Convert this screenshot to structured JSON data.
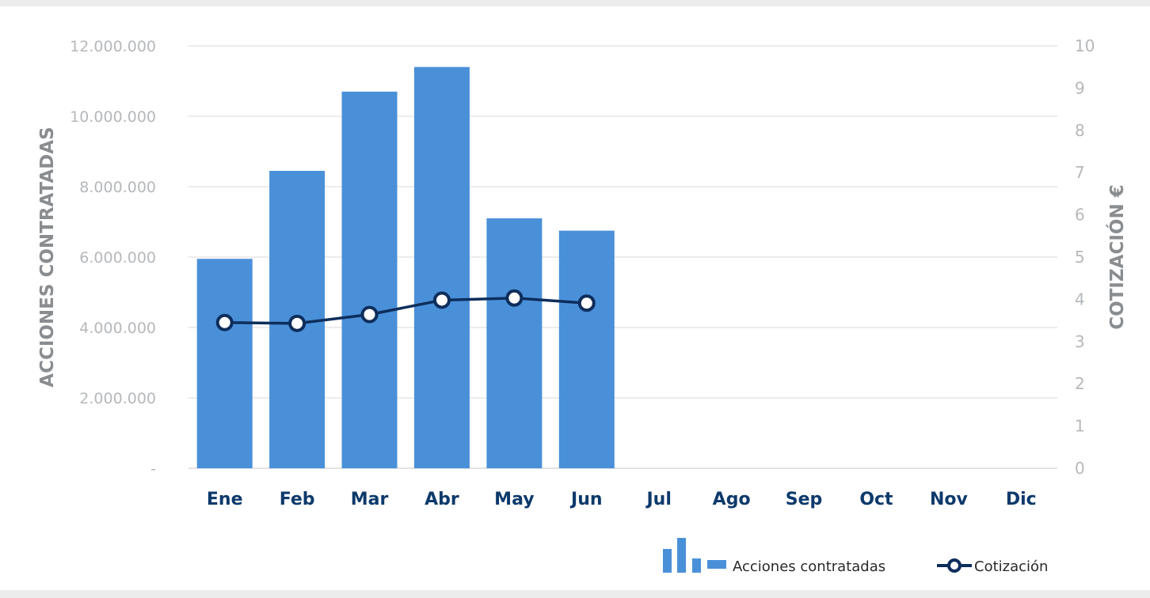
{
  "chart_data": {
    "type": "bar",
    "categories": [
      "Ene",
      "Feb",
      "Mar",
      "Abr",
      "May",
      "Jun",
      "Jul",
      "Ago",
      "Sep",
      "Oct",
      "Nov",
      "Dic"
    ],
    "series": [
      {
        "name": "Acciones contratadas",
        "type": "bar",
        "axis": "left",
        "values": [
          5950000,
          8450000,
          10700000,
          11400000,
          7100000,
          6750000,
          null,
          null,
          null,
          null,
          null,
          null
        ]
      },
      {
        "name": "Cotización",
        "type": "line",
        "axis": "right",
        "values": [
          3.45,
          3.43,
          3.64,
          3.98,
          4.03,
          3.91,
          null,
          null,
          null,
          null,
          null,
          null
        ]
      }
    ],
    "ylabel": "ACCIONES CONTRATADAS",
    "y2label": "COTIZACIÓN €",
    "ylim": [
      0,
      12000000
    ],
    "y2lim": [
      0,
      10
    ],
    "yticks": [
      0,
      2000000,
      4000000,
      6000000,
      8000000,
      10000000,
      12000000
    ],
    "ytick_labels": [
      "-",
      "2.000.000",
      "4.000.000",
      "6.000.000",
      "8.000.000",
      "10.000.000",
      "12.000.000"
    ],
    "y2ticks": [
      0,
      1,
      2,
      3,
      4,
      5,
      6,
      7,
      8,
      9,
      10
    ],
    "y2tick_labels": [
      "0",
      "1",
      "2",
      "3",
      "4",
      "5",
      "6",
      "7",
      "8",
      "9",
      "10"
    ],
    "grid": true,
    "legend_position": "bottom-right",
    "colors": {
      "bars": "#4a90d9",
      "line": "#0d2e5c",
      "grid": "#d9d9d9",
      "category_text": "#0d3a6b",
      "axis_text": "#b5b8bb"
    }
  },
  "legend": {
    "items": [
      {
        "label": "Acciones contratadas",
        "icon": "bar-chart-icon"
      },
      {
        "label": "Cotización",
        "icon": "line-marker-icon"
      }
    ]
  }
}
